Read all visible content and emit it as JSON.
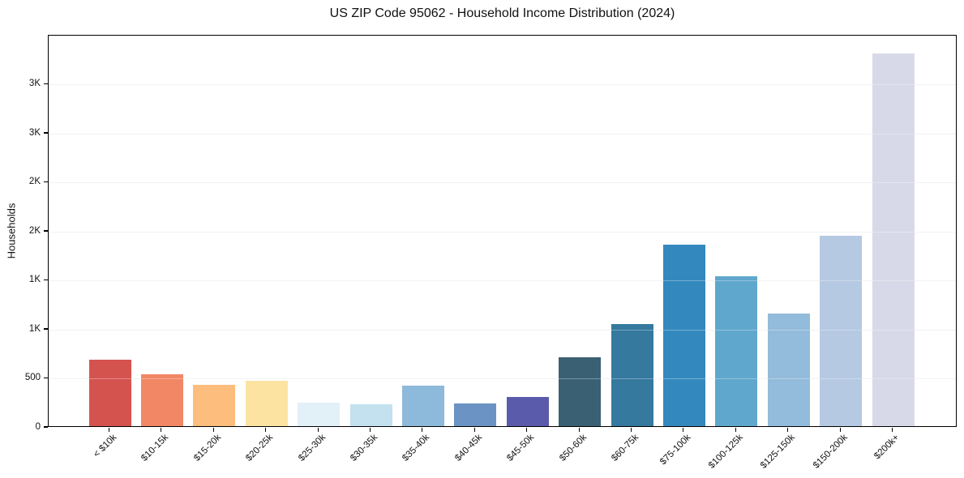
{
  "chart_data": {
    "type": "bar",
    "title": "US ZIP Code 95062 - Household Income Distribution (2024)",
    "xlabel": "",
    "ylabel": "Households",
    "categories": [
      "< $10k",
      "$10-15k",
      "$15-20k",
      "$20-25k",
      "$25-30k",
      "$30-35k",
      "$35-40k",
      "$40-45k",
      "$45-50k",
      "$50-60k",
      "$60-75k",
      "$75-100k",
      "$100-125k",
      "$125-150k",
      "$150-200k",
      "$200k+"
    ],
    "values": [
      680,
      530,
      420,
      465,
      238,
      222,
      415,
      230,
      298,
      705,
      1040,
      1850,
      1530,
      1145,
      1945,
      3800
    ],
    "bar_colors": [
      "#d4534f",
      "#f18765",
      "#fcbd7d",
      "#fce3a2",
      "#e2f0f7",
      "#c3e1ef",
      "#8db9da",
      "#6b93c4",
      "#5b5bab",
      "#396173",
      "#35799f",
      "#3389bd",
      "#60a7cd",
      "#93bbdb",
      "#b5c9e2",
      "#d8d9e8"
    ],
    "ylim": [
      0,
      4000
    ],
    "yticks": {
      "values": [
        0,
        500,
        1000,
        1500,
        2000,
        2500,
        3000,
        3500
      ],
      "labels": [
        "0",
        "500",
        "1K",
        "1K",
        "2K",
        "2K",
        "3K",
        "3K"
      ]
    },
    "grid": true,
    "legend": "none",
    "axis_colors": {
      "spine": "#000000",
      "gridline": "#ececec",
      "text": "#111111",
      "background": "#ffffff"
    }
  }
}
